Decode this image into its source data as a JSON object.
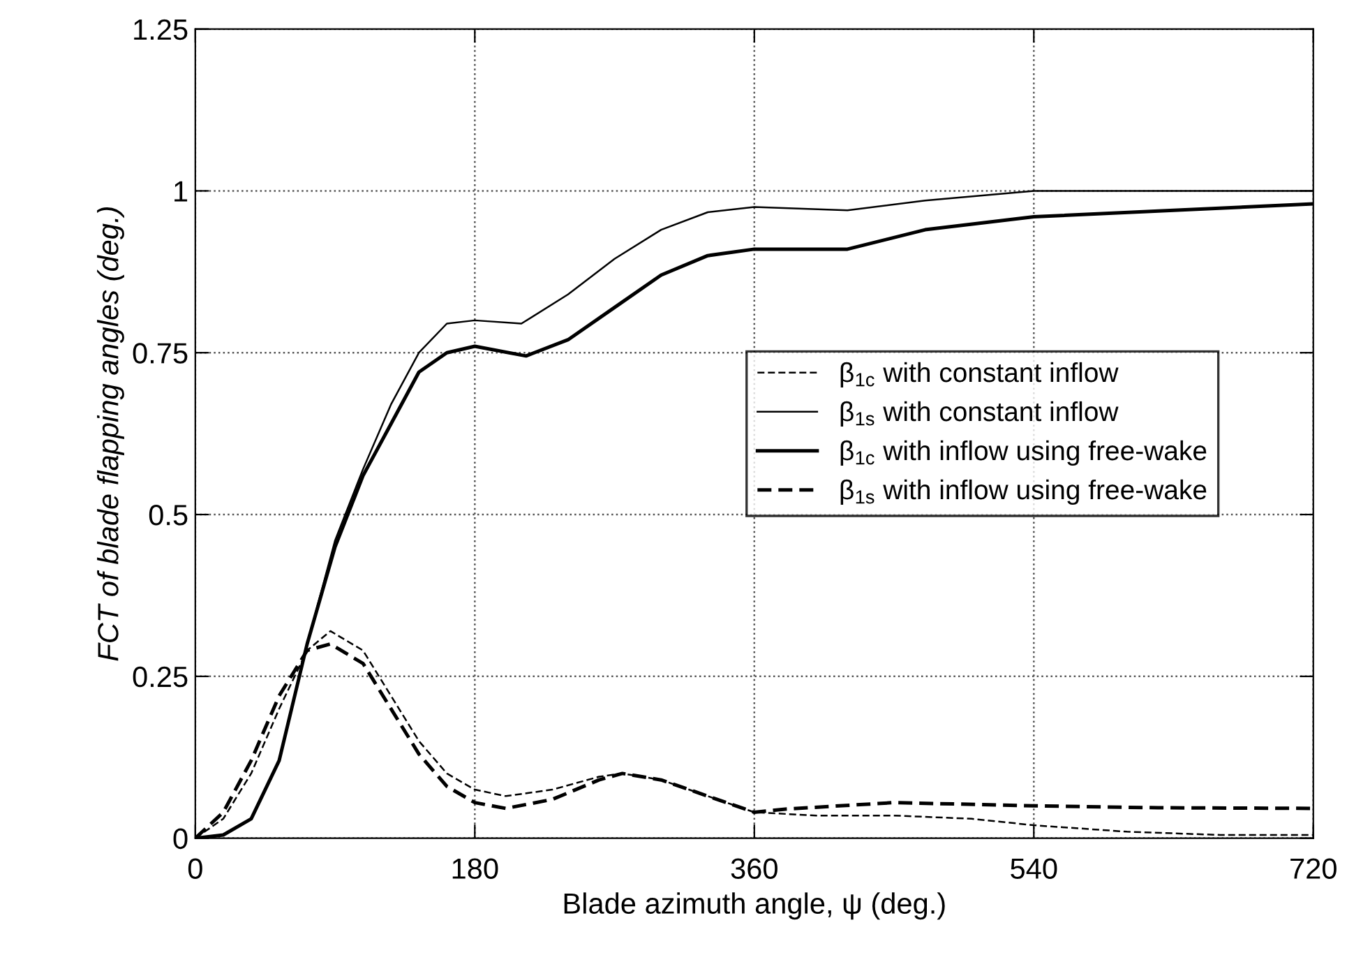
{
  "chart_data": {
    "type": "line",
    "xlabel": "Blade azimuth angle, ψ (deg.)",
    "ylabel": "FCT of blade flapping angles (deg.)",
    "xlim": [
      0,
      720
    ],
    "xticks": [
      0,
      180,
      360,
      540,
      720
    ],
    "ylim": [
      0,
      1.25
    ],
    "yticks": [
      0,
      0.25,
      0.5,
      0.75,
      1,
      1.25
    ],
    "grid": true,
    "legend": "center right",
    "marker": "none",
    "series": [
      {
        "name": "β$_{1c}$ with constant inflow",
        "color": "#000000",
        "line_style": "dashed",
        "x": [
          0,
          18,
          36,
          54,
          72,
          87,
          108,
          126,
          144,
          162,
          180,
          200,
          230,
          260,
          275,
          300,
          330,
          360,
          400,
          450,
          500,
          540,
          600,
          660,
          720
        ],
        "values": [
          0,
          0.03,
          0.1,
          0.2,
          0.29,
          0.32,
          0.29,
          0.22,
          0.15,
          0.1,
          0.075,
          0.065,
          0.075,
          0.095,
          0.1,
          0.09,
          0.065,
          0.04,
          0.035,
          0.035,
          0.03,
          0.02,
          0.01,
          0.005,
          0.005
        ]
      },
      {
        "name": "β$_{1s}$ with constant inflow",
        "color": "#000000",
        "line_style": "solid",
        "x": [
          0,
          18,
          36,
          54,
          72,
          90,
          108,
          126,
          144,
          162,
          180,
          210,
          240,
          270,
          300,
          330,
          360,
          420,
          470,
          540,
          630,
          720
        ],
        "values": [
          0,
          0.005,
          0.03,
          0.12,
          0.3,
          0.46,
          0.57,
          0.67,
          0.75,
          0.795,
          0.8,
          0.795,
          0.84,
          0.895,
          0.94,
          0.967,
          0.975,
          0.97,
          0.985,
          1.0,
          1.0,
          1.0
        ]
      },
      {
        "name": "β$_{1c}$ with inflow using free-wake",
        "color": "#000000",
        "line_style": "solid",
        "x": [
          0,
          18,
          36,
          54,
          72,
          90,
          108,
          126,
          144,
          162,
          180,
          213,
          240,
          270,
          300,
          330,
          360,
          420,
          470,
          540,
          630,
          720
        ],
        "values": [
          0,
          0.005,
          0.03,
          0.12,
          0.3,
          0.45,
          0.56,
          0.64,
          0.72,
          0.75,
          0.76,
          0.745,
          0.77,
          0.82,
          0.87,
          0.9,
          0.91,
          0.91,
          0.94,
          0.96,
          0.97,
          0.98
        ]
      },
      {
        "name": "β$_{1s}$ with inflow using free-wake",
        "color": "#000000",
        "line_style": "dashed",
        "x": [
          0,
          18,
          36,
          54,
          72,
          87,
          108,
          126,
          144,
          162,
          180,
          200,
          230,
          260,
          275,
          300,
          330,
          360,
          380,
          450,
          540,
          620,
          720
        ],
        "values": [
          0,
          0.04,
          0.12,
          0.22,
          0.29,
          0.3,
          0.27,
          0.2,
          0.13,
          0.08,
          0.055,
          0.046,
          0.06,
          0.09,
          0.1,
          0.09,
          0.065,
          0.04,
          0.045,
          0.055,
          0.05,
          0.047,
          0.046
        ]
      }
    ]
  }
}
